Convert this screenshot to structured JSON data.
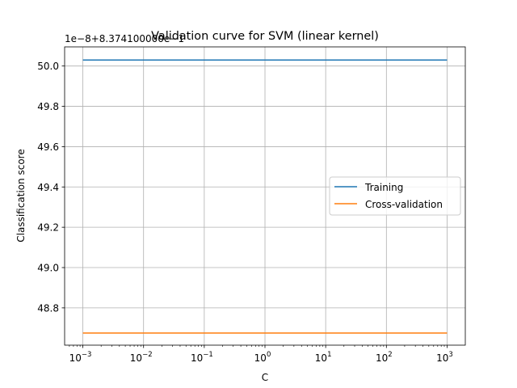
{
  "chart_data": {
    "type": "line",
    "title": "Validation curve for SVM (linear kernel)",
    "xlabel": "C",
    "ylabel": "Classification score",
    "y_offset_label": "1e−8+8.374100000e−1",
    "xscale": "log",
    "xlim": [
      0.000501,
      1995
    ],
    "ylim": [
      48.615,
      50.095
    ],
    "grid": true,
    "legend_position": "center-right",
    "x": [
      0.001,
      0.01,
      0.1,
      1,
      10,
      100,
      1000
    ],
    "series": [
      {
        "name": "Training",
        "color": "#1f77b4",
        "values": [
          50.03,
          50.03,
          50.03,
          50.03,
          50.03,
          50.03,
          50.03
        ]
      },
      {
        "name": "Cross-validation",
        "color": "#ff7f0e",
        "values": [
          48.675,
          48.675,
          48.675,
          48.675,
          48.675,
          48.675,
          48.675
        ]
      }
    ],
    "x_ticks": [
      {
        "value": 0.001,
        "base": "10",
        "exp": "−3"
      },
      {
        "value": 0.01,
        "base": "10",
        "exp": "−2"
      },
      {
        "value": 0.1,
        "base": "10",
        "exp": "−1"
      },
      {
        "value": 1,
        "base": "10",
        "exp": "0"
      },
      {
        "value": 10,
        "base": "10",
        "exp": "1"
      },
      {
        "value": 100,
        "base": "10",
        "exp": "2"
      },
      {
        "value": 1000,
        "base": "10",
        "exp": "3"
      }
    ],
    "y_ticks": [
      {
        "value": 48.8,
        "label": "48.8"
      },
      {
        "value": 49.0,
        "label": "49.0"
      },
      {
        "value": 49.2,
        "label": "49.2"
      },
      {
        "value": 49.4,
        "label": "49.4"
      },
      {
        "value": 49.6,
        "label": "49.6"
      },
      {
        "value": 49.8,
        "label": "49.8"
      },
      {
        "value": 50.0,
        "label": "50.0"
      }
    ]
  }
}
